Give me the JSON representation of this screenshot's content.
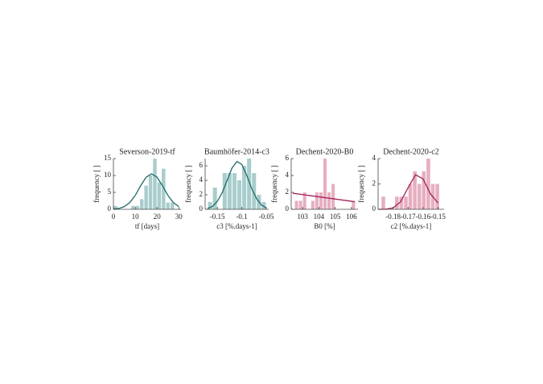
{
  "chart_data": [
    {
      "type": "histogram",
      "title": "Severson-2019-tf",
      "xlabel": "tf [days]",
      "ylabel": "frequency [ ]",
      "bins": [
        0,
        2,
        4,
        6,
        8,
        10,
        12,
        14,
        16,
        18,
        20,
        22,
        24,
        26,
        28,
        30
      ],
      "counts": [
        1,
        0,
        0,
        0,
        1,
        1,
        3,
        7,
        10,
        15,
        8,
        12,
        2,
        2,
        0
      ],
      "color": "#a9cdcd",
      "fit": {
        "color": "#1f6b6b",
        "x": [
          0,
          2.5,
          5,
          7.5,
          10,
          12.5,
          15,
          17.5,
          20,
          22.5,
          25,
          27.5,
          30
        ],
        "values": [
          0.07,
          0.25,
          0.8,
          2.0,
          4.1,
          7.0,
          9.5,
          10.5,
          9.5,
          7.0,
          4.1,
          2.0,
          0.8
        ]
      },
      "xlim": [
        0,
        31
      ],
      "ylim": [
        0,
        15
      ],
      "xticks": [
        0,
        10,
        20,
        30
      ],
      "yticks": [
        0,
        5,
        10,
        15
      ]
    },
    {
      "type": "histogram",
      "title": "Baumhöfer-2014-c3",
      "xlabel": "c3 [%.days-1]",
      "ylabel": "frequency [ ]",
      "bins": [
        -0.17,
        -0.16,
        -0.15,
        -0.14,
        -0.13,
        -0.12,
        -0.11,
        -0.1,
        -0.09,
        -0.08,
        -0.07,
        -0.06,
        -0.05
      ],
      "counts": [
        1,
        3,
        0,
        5,
        5,
        5,
        4,
        6,
        7,
        5,
        2,
        1
      ],
      "color": "#a9cdcd",
      "fit": {
        "color": "#1f6b6b",
        "x": [
          -0.17,
          -0.16,
          -0.15,
          -0.14,
          -0.13,
          -0.12,
          -0.11,
          -0.1,
          -0.09,
          -0.08,
          -0.07,
          -0.06,
          -0.05
        ],
        "values": [
          0.12,
          0.4,
          1.1,
          2.3,
          4.0,
          5.7,
          6.6,
          6.2,
          4.7,
          2.9,
          1.5,
          0.6,
          0.2
        ]
      },
      "xlim": [
        -0.175,
        -0.045
      ],
      "ylim": [
        0,
        7
      ],
      "xticks": [
        -0.15,
        -0.1,
        -0.05
      ],
      "yticks": [
        0,
        2,
        4,
        6
      ]
    },
    {
      "type": "histogram",
      "title": "Dechent-2020-B0",
      "xlabel": "B0 [%]",
      "ylabel": "frequency [ ]",
      "bins": [
        102.5,
        102.75,
        103,
        103.25,
        103.5,
        103.75,
        104,
        104.25,
        104.5,
        104.75,
        105,
        105.25,
        105.5,
        105.75,
        106,
        106.25
      ],
      "counts": [
        1,
        1,
        2,
        0,
        1,
        2,
        2,
        6,
        2,
        3,
        0,
        0,
        0,
        0,
        1
      ],
      "color": "#e6afc0",
      "fit": {
        "color": "#a3215a",
        "x": [
          102.4,
          103.35,
          104.3,
          105.25,
          106.2
        ],
        "values": [
          1.9,
          1.65,
          1.4,
          1.15,
          0.9
        ]
      },
      "xlim": [
        102.3,
        106.4
      ],
      "ylim": [
        0,
        6
      ],
      "xticks": [
        103,
        104,
        105,
        106
      ],
      "yticks": [
        0,
        2,
        4,
        6
      ]
    },
    {
      "type": "histogram",
      "title": "Dechent-2020-c2",
      "xlabel": "c2 [%.days-1]",
      "ylabel": "frequency [ ]",
      "bins": [
        -0.188,
        -0.185,
        -0.182,
        -0.179,
        -0.176,
        -0.173,
        -0.17,
        -0.167,
        -0.164,
        -0.161,
        -0.158,
        -0.155,
        -0.152,
        -0.149
      ],
      "counts": [
        1,
        0,
        0,
        1,
        1,
        1,
        2,
        3,
        2,
        3,
        4,
        2,
        2
      ],
      "color": "#e6afc0",
      "fit": {
        "color": "#a3215a",
        "x": [
          -0.19,
          -0.185,
          -0.18,
          -0.175,
          -0.17,
          -0.165,
          -0.16,
          -0.155,
          -0.15
        ],
        "values": [
          0,
          0.01,
          0.11,
          0.59,
          1.7,
          2.73,
          2.4,
          1.2,
          0.5
        ]
      },
      "xlim": [
        -0.19,
        -0.146
      ],
      "ylim": [
        0,
        4
      ],
      "xticks": [
        -0.18,
        -0.17,
        -0.16,
        -0.15
      ],
      "yticks": [
        0,
        2,
        4
      ]
    }
  ]
}
